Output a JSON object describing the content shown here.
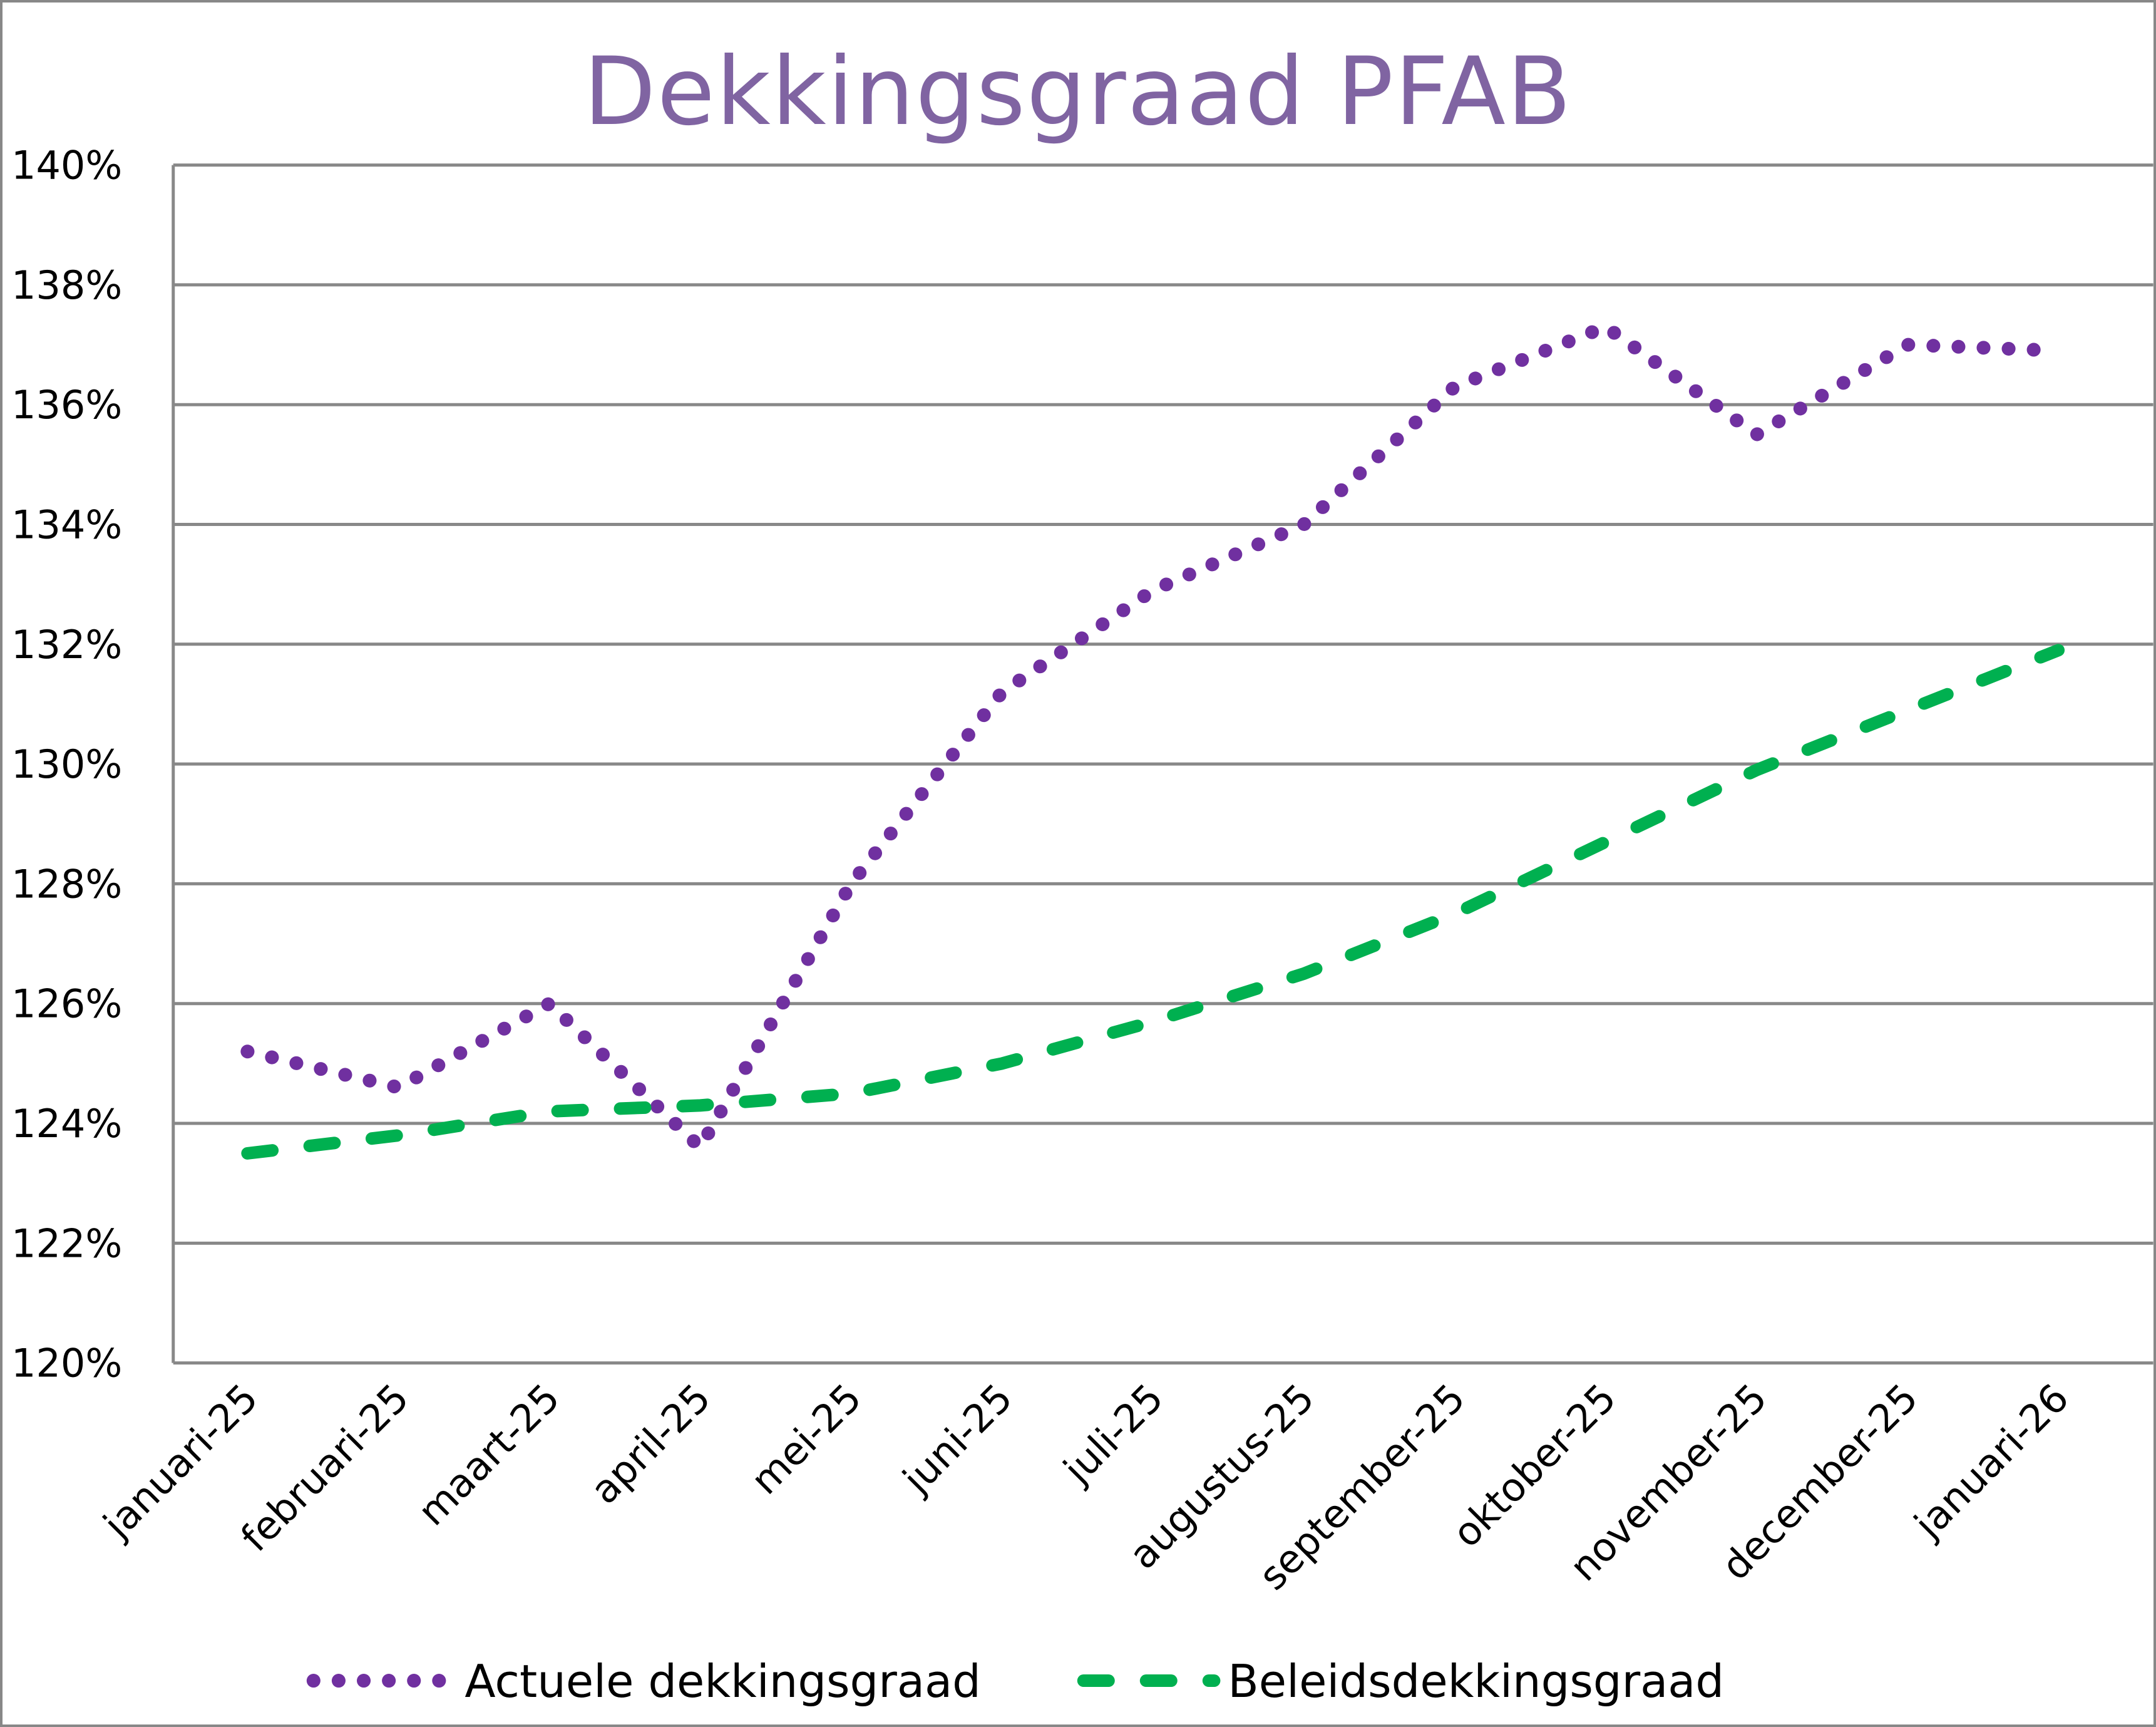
{
  "chart_data": {
    "type": "line",
    "title": "Dekkingsgraad  PFAB",
    "xlabel": "",
    "ylabel": "",
    "ylim": [
      120,
      140
    ],
    "yticks": [
      "120%",
      "122%",
      "124%",
      "126%",
      "128%",
      "130%",
      "132%",
      "134%",
      "136%",
      "138%",
      "140%"
    ],
    "grid": true,
    "legend_position": "bottom",
    "categories": [
      "januari-25",
      "februari-25",
      "maart-25",
      "april-25",
      "mei-25",
      "juni-25",
      "juli-25",
      "augustus-25",
      "september-25",
      "oktober-25",
      "november-25",
      "december-25",
      "januari-26"
    ],
    "series": [
      {
        "name": "Actuele dekkingsgraad",
        "style": "dotted",
        "color": "#7030a0",
        "values": [
          125.2,
          124.6,
          126.0,
          123.6,
          128.0,
          131.2,
          132.9,
          134.0,
          136.3,
          137.3,
          135.5,
          137.0,
          136.9
        ]
      },
      {
        "name": "Beleidsdekkingsgraad",
        "style": "dashed",
        "color": "#00b050",
        "values": [
          123.5,
          123.8,
          124.2,
          124.3,
          124.5,
          125.0,
          125.7,
          126.5,
          127.5,
          128.7,
          129.9,
          130.9,
          131.9
        ]
      }
    ]
  },
  "colors": {
    "title": "#8064a2",
    "grid": "#888888"
  }
}
